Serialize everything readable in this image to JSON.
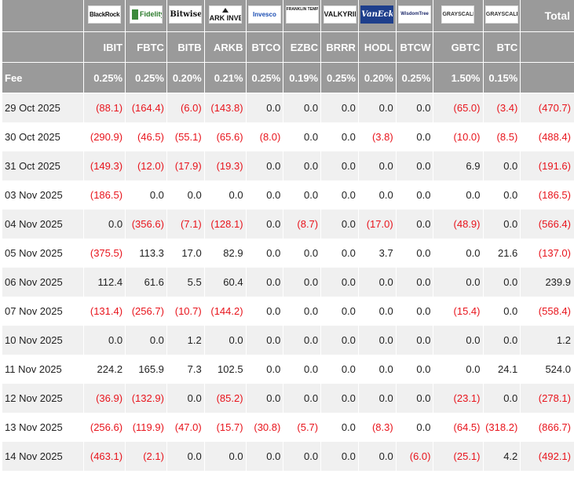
{
  "header": {
    "total_label": "Total",
    "fee_label": "Fee",
    "funds": [
      {
        "logo_icon": "blackrock-logo-icon",
        "logo_text": "BlackRock",
        "ticker": "IBIT",
        "fee": "0.25%"
      },
      {
        "logo_icon": "fidelity-logo-icon",
        "logo_text": "Fidelity",
        "ticker": "FBTC",
        "fee": "0.25%"
      },
      {
        "logo_icon": "bitwise-logo-icon",
        "logo_text": "Bitwise",
        "ticker": "BITB",
        "fee": "0.20%"
      },
      {
        "logo_icon": "ark-invest-logo-icon",
        "logo_text": "ARK INVEST",
        "ticker": "ARKB",
        "fee": "0.21%"
      },
      {
        "logo_icon": "invesco-logo-icon",
        "logo_text": "Invesco",
        "ticker": "BTCO",
        "fee": "0.25%"
      },
      {
        "logo_icon": "franklin-templeton-logo-icon",
        "logo_text": "FRANKLIN TEMPLETON",
        "ticker": "EZBC",
        "fee": "0.19%"
      },
      {
        "logo_icon": "valkyrie-logo-icon",
        "logo_text": "VALKYRIE",
        "ticker": "BRRR",
        "fee": "0.25%"
      },
      {
        "logo_icon": "vaneck-logo-icon",
        "logo_text": "VanEck",
        "ticker": "HODL",
        "fee": "0.20%"
      },
      {
        "logo_icon": "wisdomtree-logo-icon",
        "logo_text": "WisdomTree",
        "ticker": "BTCW",
        "fee": "0.25%"
      },
      {
        "logo_icon": "grayscale-logo-icon",
        "logo_text": "GRAYSCALE",
        "ticker": "GBTC",
        "fee": "1.50%"
      },
      {
        "logo_icon": "grayscale-logo-icon",
        "logo_text": "GRAYSCALE",
        "ticker": "BTC",
        "fee": "0.15%"
      }
    ]
  },
  "colors": {
    "header_bg": "#9a9a9a",
    "negative": "#e8141c",
    "stripe": "#f0f0f0"
  },
  "rows": [
    {
      "date": "29 Oct 2025",
      "values": [
        "(88.1)",
        "(164.4)",
        "(6.0)",
        "(143.8)",
        "0.0",
        "0.0",
        "0.0",
        "0.0",
        "0.0",
        "(65.0)",
        "(3.4)"
      ],
      "total": "(470.7)"
    },
    {
      "date": "30 Oct 2025",
      "values": [
        "(290.9)",
        "(46.5)",
        "(55.1)",
        "(65.6)",
        "(8.0)",
        "0.0",
        "0.0",
        "(3.8)",
        "0.0",
        "(10.0)",
        "(8.5)"
      ],
      "total": "(488.4)"
    },
    {
      "date": "31 Oct 2025",
      "values": [
        "(149.3)",
        "(12.0)",
        "(17.9)",
        "(19.3)",
        "0.0",
        "0.0",
        "0.0",
        "0.0",
        "0.0",
        "6.9",
        "0.0"
      ],
      "total": "(191.6)"
    },
    {
      "date": "03 Nov 2025",
      "values": [
        "(186.5)",
        "0.0",
        "0.0",
        "0.0",
        "0.0",
        "0.0",
        "0.0",
        "0.0",
        "0.0",
        "0.0",
        "0.0"
      ],
      "total": "(186.5)"
    },
    {
      "date": "04 Nov 2025",
      "values": [
        "0.0",
        "(356.6)",
        "(7.1)",
        "(128.1)",
        "0.0",
        "(8.7)",
        "0.0",
        "(17.0)",
        "0.0",
        "(48.9)",
        "0.0"
      ],
      "total": "(566.4)"
    },
    {
      "date": "05 Nov 2025",
      "values": [
        "(375.5)",
        "113.3",
        "17.0",
        "82.9",
        "0.0",
        "0.0",
        "0.0",
        "3.7",
        "0.0",
        "0.0",
        "21.6"
      ],
      "total": "(137.0)"
    },
    {
      "date": "06 Nov 2025",
      "values": [
        "112.4",
        "61.6",
        "5.5",
        "60.4",
        "0.0",
        "0.0",
        "0.0",
        "0.0",
        "0.0",
        "0.0",
        "0.0"
      ],
      "total": "239.9"
    },
    {
      "date": "07 Nov 2025",
      "values": [
        "(131.4)",
        "(256.7)",
        "(10.7)",
        "(144.2)",
        "0.0",
        "0.0",
        "0.0",
        "0.0",
        "0.0",
        "(15.4)",
        "0.0"
      ],
      "total": "(558.4)"
    },
    {
      "date": "10 Nov 2025",
      "values": [
        "0.0",
        "0.0",
        "1.2",
        "0.0",
        "0.0",
        "0.0",
        "0.0",
        "0.0",
        "0.0",
        "0.0",
        "0.0"
      ],
      "total": "1.2"
    },
    {
      "date": "11 Nov 2025",
      "values": [
        "224.2",
        "165.9",
        "7.3",
        "102.5",
        "0.0",
        "0.0",
        "0.0",
        "0.0",
        "0.0",
        "0.0",
        "24.1"
      ],
      "total": "524.0"
    },
    {
      "date": "12 Nov 2025",
      "values": [
        "(36.9)",
        "(132.9)",
        "0.0",
        "(85.2)",
        "0.0",
        "0.0",
        "0.0",
        "0.0",
        "0.0",
        "(23.1)",
        "0.0"
      ],
      "total": "(278.1)"
    },
    {
      "date": "13 Nov 2025",
      "values": [
        "(256.6)",
        "(119.9)",
        "(47.0)",
        "(15.7)",
        "(30.8)",
        "(5.7)",
        "0.0",
        "(8.3)",
        "0.0",
        "(64.5)",
        "(318.2)"
      ],
      "total": "(866.7)"
    },
    {
      "date": "14 Nov 2025",
      "values": [
        "(463.1)",
        "(2.1)",
        "0.0",
        "0.0",
        "0.0",
        "0.0",
        "0.0",
        "0.0",
        "(6.0)",
        "(25.1)",
        "4.2"
      ],
      "total": "(492.1)"
    }
  ]
}
